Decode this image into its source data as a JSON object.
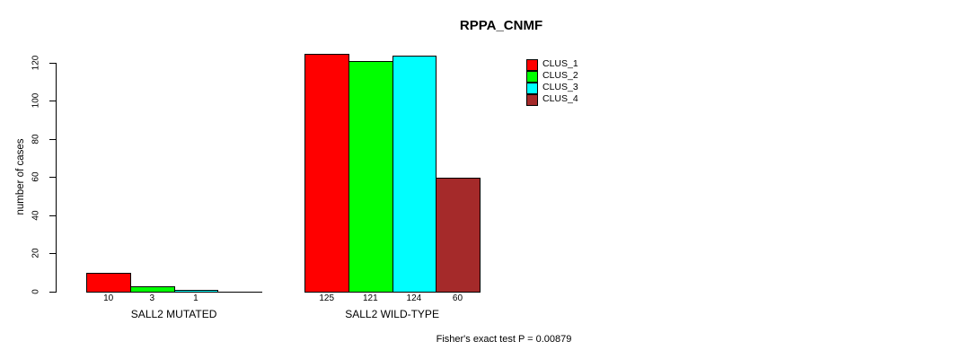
{
  "chart_data": {
    "type": "bar",
    "title": "RPPA_CNMF",
    "ylabel": "number of cases",
    "xlabel": "",
    "ylim": [
      0,
      120
    ],
    "yticks": [
      0,
      20,
      40,
      60,
      80,
      100,
      120
    ],
    "grid": false,
    "legend_position": "top-right",
    "categories": [
      "SALL2 MUTATED",
      "SALL2 WILD-TYPE"
    ],
    "series": [
      {
        "name": "CLUS_1",
        "color": "#ff0000",
        "values": [
          10,
          125
        ]
      },
      {
        "name": "CLUS_2",
        "color": "#00ff00",
        "values": [
          3,
          121
        ]
      },
      {
        "name": "CLUS_3",
        "color": "#00ffff",
        "values": [
          1,
          124
        ]
      },
      {
        "name": "CLUS_4",
        "color": "#a52a2a",
        "values": [
          0,
          60
        ]
      }
    ],
    "bar_value_labels": [
      [
        "10",
        "3",
        "1",
        ""
      ],
      [
        "125",
        "121",
        "124",
        "60"
      ]
    ],
    "annotation": "Fisher's exact test P = 0.00879"
  }
}
